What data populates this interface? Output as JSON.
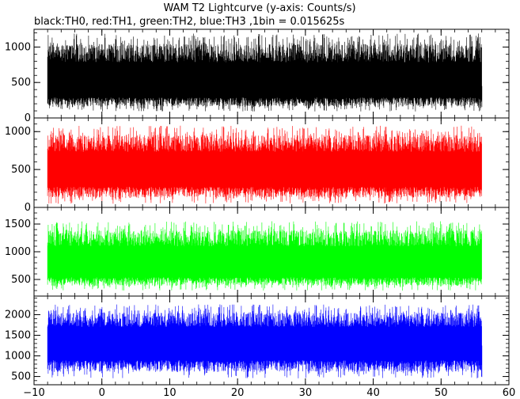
{
  "chart_data": {
    "type": "line",
    "title": "WAM T2 Lightcurve (y-axis: Counts/s)",
    "subtitle": "black:TH0, red:TH1, green:TH2, blue:TH3 ,1bin = 0.015625s",
    "xlabel": "",
    "ylabel": "",
    "xlim": [
      -10,
      60
    ],
    "x_ticks": [
      -10,
      0,
      10,
      20,
      30,
      40,
      50,
      60
    ],
    "x_tick_labels": [
      "−10",
      "0",
      "10",
      "20",
      "30",
      "40",
      "50",
      "60"
    ],
    "data_x_range": [
      -8,
      56
    ],
    "bin_size_s": 0.015625,
    "grid": false,
    "legend": "none",
    "panels": [
      {
        "series": "TH0",
        "color": "#000000",
        "ylim": [
          0,
          1250
        ],
        "y_ticks": [
          0,
          500,
          1000
        ],
        "y_tick_labels": [
          "0",
          "500",
          "1000"
        ],
        "mean": 450,
        "spread_min": 90,
        "spread_max": 1190
      },
      {
        "series": "TH1",
        "color": "#ff0000",
        "ylim": [
          0,
          1180
        ],
        "y_ticks": [
          0,
          500,
          1000
        ],
        "y_tick_labels": [
          "0",
          "500",
          "1000"
        ],
        "mean": 450,
        "spread_min": 50,
        "spread_max": 1080
      },
      {
        "series": "TH2",
        "color": "#00ff00",
        "ylim": [
          200,
          1800
        ],
        "y_ticks": [
          500,
          1000,
          1500
        ],
        "y_tick_labels": [
          "500",
          "1000",
          "1500"
        ],
        "mean": 730,
        "spread_min": 300,
        "spread_max": 1550
      },
      {
        "series": "TH3",
        "color": "#0000ff",
        "ylim": [
          300,
          2450
        ],
        "y_ticks": [
          500,
          1000,
          1500,
          2000
        ],
        "y_tick_labels": [
          "500",
          "1000",
          "1500",
          "2000"
        ],
        "mean": 1250,
        "spread_min": 450,
        "spread_max": 2250
      }
    ]
  }
}
